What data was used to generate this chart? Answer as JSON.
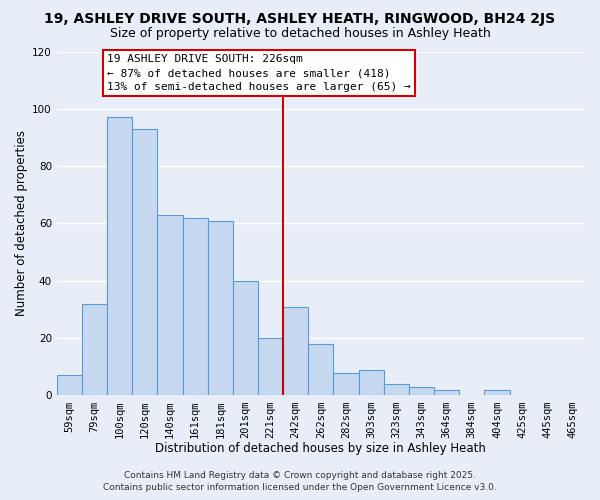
{
  "title": "19, ASHLEY DRIVE SOUTH, ASHLEY HEATH, RINGWOOD, BH24 2JS",
  "subtitle": "Size of property relative to detached houses in Ashley Heath",
  "xlabel": "Distribution of detached houses by size in Ashley Heath",
  "ylabel": "Number of detached properties",
  "bar_labels": [
    "59sqm",
    "79sqm",
    "100sqm",
    "120sqm",
    "140sqm",
    "161sqm",
    "181sqm",
    "201sqm",
    "221sqm",
    "242sqm",
    "262sqm",
    "282sqm",
    "303sqm",
    "323sqm",
    "343sqm",
    "364sqm",
    "384sqm",
    "404sqm",
    "425sqm",
    "445sqm",
    "465sqm"
  ],
  "bar_values": [
    7,
    32,
    97,
    93,
    63,
    62,
    61,
    40,
    20,
    31,
    18,
    8,
    9,
    4,
    3,
    2,
    0,
    2,
    0,
    0,
    0
  ],
  "bar_color": "#c6d9f1",
  "bar_edge_color": "#5b9bd5",
  "vline_color": "#cc0000",
  "ylim": [
    0,
    120
  ],
  "yticks": [
    0,
    20,
    40,
    60,
    80,
    100,
    120
  ],
  "annotation_title": "19 ASHLEY DRIVE SOUTH: 226sqm",
  "annotation_line1": "← 87% of detached houses are smaller (418)",
  "annotation_line2": "13% of semi-detached houses are larger (65) →",
  "annotation_box_color": "#ffffff",
  "annotation_box_edge": "#cc0000",
  "footer1": "Contains HM Land Registry data © Crown copyright and database right 2025.",
  "footer2": "Contains public sector information licensed under the Open Government Licence v3.0.",
  "bg_color": "#e8eef8",
  "grid_color": "#ffffff",
  "title_fontsize": 10,
  "subtitle_fontsize": 9,
  "axis_label_fontsize": 8.5,
  "tick_fontsize": 7.5,
  "annotation_fontsize": 8,
  "footer_fontsize": 6.5
}
